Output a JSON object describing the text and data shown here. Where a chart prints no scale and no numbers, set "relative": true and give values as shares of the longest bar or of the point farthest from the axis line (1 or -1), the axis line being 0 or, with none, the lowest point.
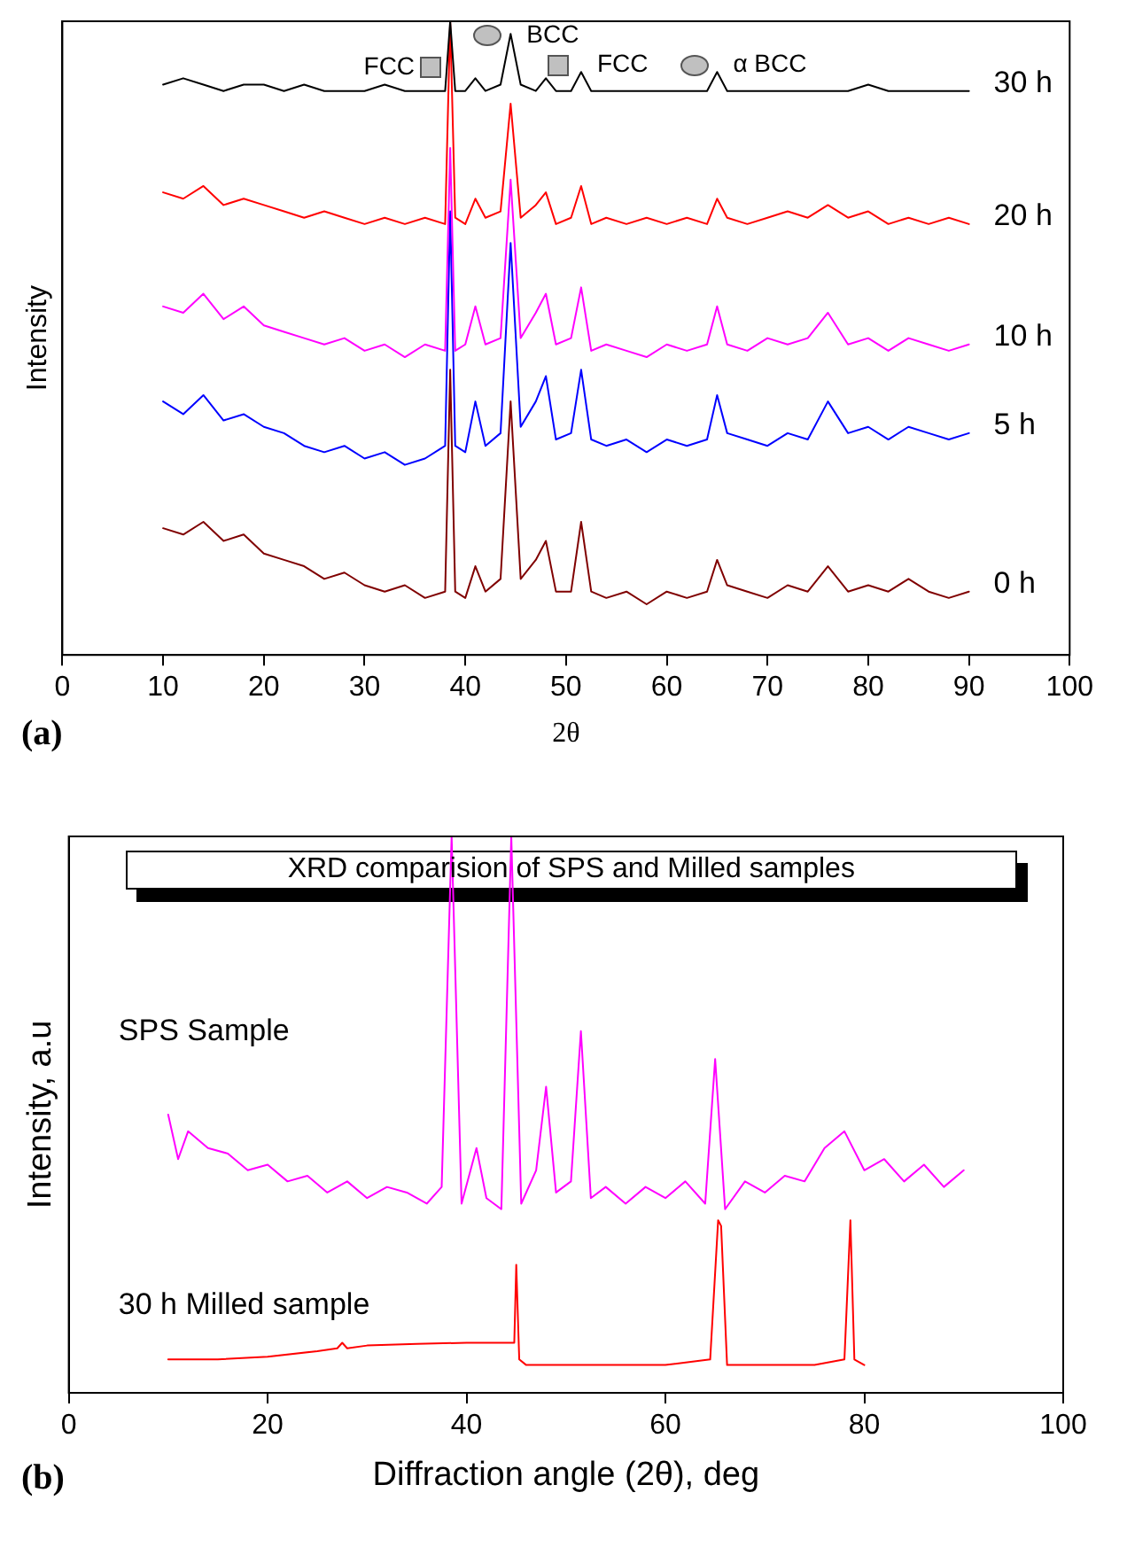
{
  "chart_data": [
    {
      "type": "line",
      "xlabel": "2θ",
      "ylabel": "Intensity",
      "relative": true,
      "xlim": [
        0,
        100
      ],
      "xticks": [
        0,
        10,
        20,
        30,
        40,
        50,
        60,
        70,
        80,
        90,
        100
      ],
      "grid": false,
      "legend": false,
      "marker": "none",
      "line_style": "solid",
      "x": [
        10,
        12,
        14,
        16,
        18,
        20,
        22,
        24,
        26,
        28,
        30,
        32,
        34,
        36,
        38,
        38.5,
        39,
        40,
        41,
        42,
        43.5,
        44.5,
        45.5,
        47,
        48,
        49,
        50.5,
        51.5,
        52.5,
        54,
        56,
        58,
        60,
        62,
        64,
        65,
        66,
        68,
        70,
        72,
        74,
        76,
        78,
        80,
        82,
        84,
        86,
        88,
        90
      ],
      "series": [
        {
          "name": "30 h",
          "color": "#000000",
          "values": [
            0.9,
            0.91,
            0.9,
            0.89,
            0.9,
            0.9,
            0.89,
            0.9,
            0.89,
            0.89,
            0.89,
            0.9,
            0.89,
            0.89,
            0.89,
            1,
            0.89,
            0.89,
            0.91,
            0.89,
            0.9,
            0.98,
            0.9,
            0.89,
            0.91,
            0.89,
            0.89,
            0.92,
            0.89,
            0.89,
            0.89,
            0.89,
            0.89,
            0.89,
            0.89,
            0.92,
            0.89,
            0.89,
            0.89,
            0.89,
            0.89,
            0.89,
            0.89,
            0.9,
            0.89,
            0.89,
            0.89,
            0.89,
            0.89
          ]
        },
        {
          "name": "20 h",
          "color": "#ff0000",
          "values": [
            0.73,
            0.72,
            0.74,
            0.71,
            0.72,
            0.71,
            0.7,
            0.69,
            0.7,
            0.69,
            0.68,
            0.69,
            0.68,
            0.69,
            0.68,
            1,
            0.69,
            0.68,
            0.72,
            0.69,
            0.7,
            0.87,
            0.69,
            0.71,
            0.73,
            0.68,
            0.69,
            0.74,
            0.68,
            0.69,
            0.68,
            0.69,
            0.68,
            0.69,
            0.68,
            0.72,
            0.69,
            0.68,
            0.69,
            0.7,
            0.69,
            0.71,
            0.69,
            0.7,
            0.68,
            0.69,
            0.68,
            0.69,
            0.68
          ]
        },
        {
          "name": "10 h",
          "color": "#ff00ff",
          "values": [
            0.55,
            0.54,
            0.57,
            0.53,
            0.55,
            0.52,
            0.51,
            0.5,
            0.49,
            0.5,
            0.48,
            0.49,
            0.47,
            0.49,
            0.48,
            0.8,
            0.48,
            0.49,
            0.55,
            0.49,
            0.5,
            0.75,
            0.5,
            0.54,
            0.57,
            0.49,
            0.5,
            0.58,
            0.48,
            0.49,
            0.48,
            0.47,
            0.49,
            0.48,
            0.49,
            0.55,
            0.49,
            0.48,
            0.5,
            0.49,
            0.5,
            0.54,
            0.49,
            0.5,
            0.48,
            0.5,
            0.49,
            0.48,
            0.49
          ]
        },
        {
          "name": "5 h",
          "color": "#0000ff",
          "values": [
            0.4,
            0.38,
            0.41,
            0.37,
            0.38,
            0.36,
            0.35,
            0.33,
            0.32,
            0.33,
            0.31,
            0.32,
            0.3,
            0.31,
            0.33,
            0.7,
            0.33,
            0.32,
            0.4,
            0.33,
            0.35,
            0.65,
            0.36,
            0.4,
            0.44,
            0.34,
            0.35,
            0.45,
            0.34,
            0.33,
            0.34,
            0.32,
            0.34,
            0.33,
            0.34,
            0.41,
            0.35,
            0.34,
            0.33,
            0.35,
            0.34,
            0.4,
            0.35,
            0.36,
            0.34,
            0.36,
            0.35,
            0.34,
            0.35
          ]
        },
        {
          "name": "0 h",
          "color": "#800000",
          "values": [
            0.2,
            0.19,
            0.21,
            0.18,
            0.19,
            0.16,
            0.15,
            0.14,
            0.12,
            0.13,
            0.11,
            0.1,
            0.11,
            0.09,
            0.1,
            0.45,
            0.1,
            0.09,
            0.14,
            0.1,
            0.12,
            0.4,
            0.12,
            0.15,
            0.18,
            0.1,
            0.1,
            0.21,
            0.1,
            0.09,
            0.1,
            0.08,
            0.1,
            0.09,
            0.1,
            0.15,
            0.11,
            0.1,
            0.09,
            0.11,
            0.1,
            0.14,
            0.1,
            0.11,
            0.1,
            0.12,
            0.1,
            0.09,
            0.1
          ]
        }
      ],
      "annotations": [
        "(a)",
        {
          "text": "FCC",
          "x": 38.5,
          "y": 1
        },
        {
          "text": "BCC",
          "x": 44.5,
          "y": 0.98
        },
        {
          "text": "FCC",
          "x": 51.5,
          "y": 0.92
        },
        {
          "text": "α BCC",
          "x": 65,
          "y": 0.92
        }
      ]
    },
    {
      "type": "line",
      "title": "XRD comparision of SPS and Milled samples",
      "xlabel": "Diffraction angle (2θ), deg",
      "ylabel": "Intensity, a.u",
      "relative": true,
      "xlim": [
        0,
        100
      ],
      "xticks": [
        0,
        20,
        40,
        60,
        80,
        100
      ],
      "grid": false,
      "legend": false,
      "marker": "none",
      "line_style": "solid",
      "series": [
        {
          "name": "SPS Sample",
          "color": "#ff00ff",
          "x": [
            10,
            11,
            12,
            14,
            16,
            18,
            20,
            22,
            24,
            26,
            28,
            30,
            32,
            34,
            36,
            37.5,
            38.5,
            39.5,
            41,
            42,
            43.5,
            44.5,
            45.5,
            47,
            48,
            49,
            50.5,
            51.5,
            52.5,
            54,
            56,
            58,
            60,
            62,
            64,
            65,
            66,
            68,
            70,
            72,
            74,
            76,
            78,
            80,
            82,
            84,
            86,
            88,
            90
          ],
          "values": [
            0.5,
            0.42,
            0.47,
            0.44,
            0.43,
            0.4,
            0.41,
            0.38,
            0.39,
            0.36,
            0.38,
            0.35,
            0.37,
            0.36,
            0.34,
            0.37,
            1,
            0.34,
            0.44,
            0.35,
            0.33,
            1,
            0.34,
            0.4,
            0.55,
            0.36,
            0.38,
            0.65,
            0.35,
            0.37,
            0.34,
            0.37,
            0.35,
            0.38,
            0.34,
            0.6,
            0.33,
            0.38,
            0.36,
            0.39,
            0.38,
            0.44,
            0.47,
            0.4,
            0.42,
            0.38,
            0.41,
            0.37,
            0.4
          ]
        },
        {
          "name": "30 h Milled sample",
          "color": "#ff0000",
          "x": [
            10,
            15,
            20,
            25,
            27,
            27.5,
            28,
            30,
            35,
            40,
            44.8,
            45,
            45.3,
            46,
            50,
            55,
            60,
            64.5,
            65.3,
            65.6,
            66.2,
            70,
            75,
            78,
            78.6,
            79,
            80
          ],
          "values": [
            0.06,
            0.06,
            0.065,
            0.075,
            0.08,
            0.09,
            0.08,
            0.085,
            0.088,
            0.09,
            0.09,
            0.23,
            0.06,
            0.05,
            0.05,
            0.05,
            0.05,
            0.06,
            0.31,
            0.3,
            0.05,
            0.05,
            0.05,
            0.06,
            0.31,
            0.06,
            0.05
          ]
        }
      ],
      "annotations": [
        "(b)"
      ]
    }
  ]
}
